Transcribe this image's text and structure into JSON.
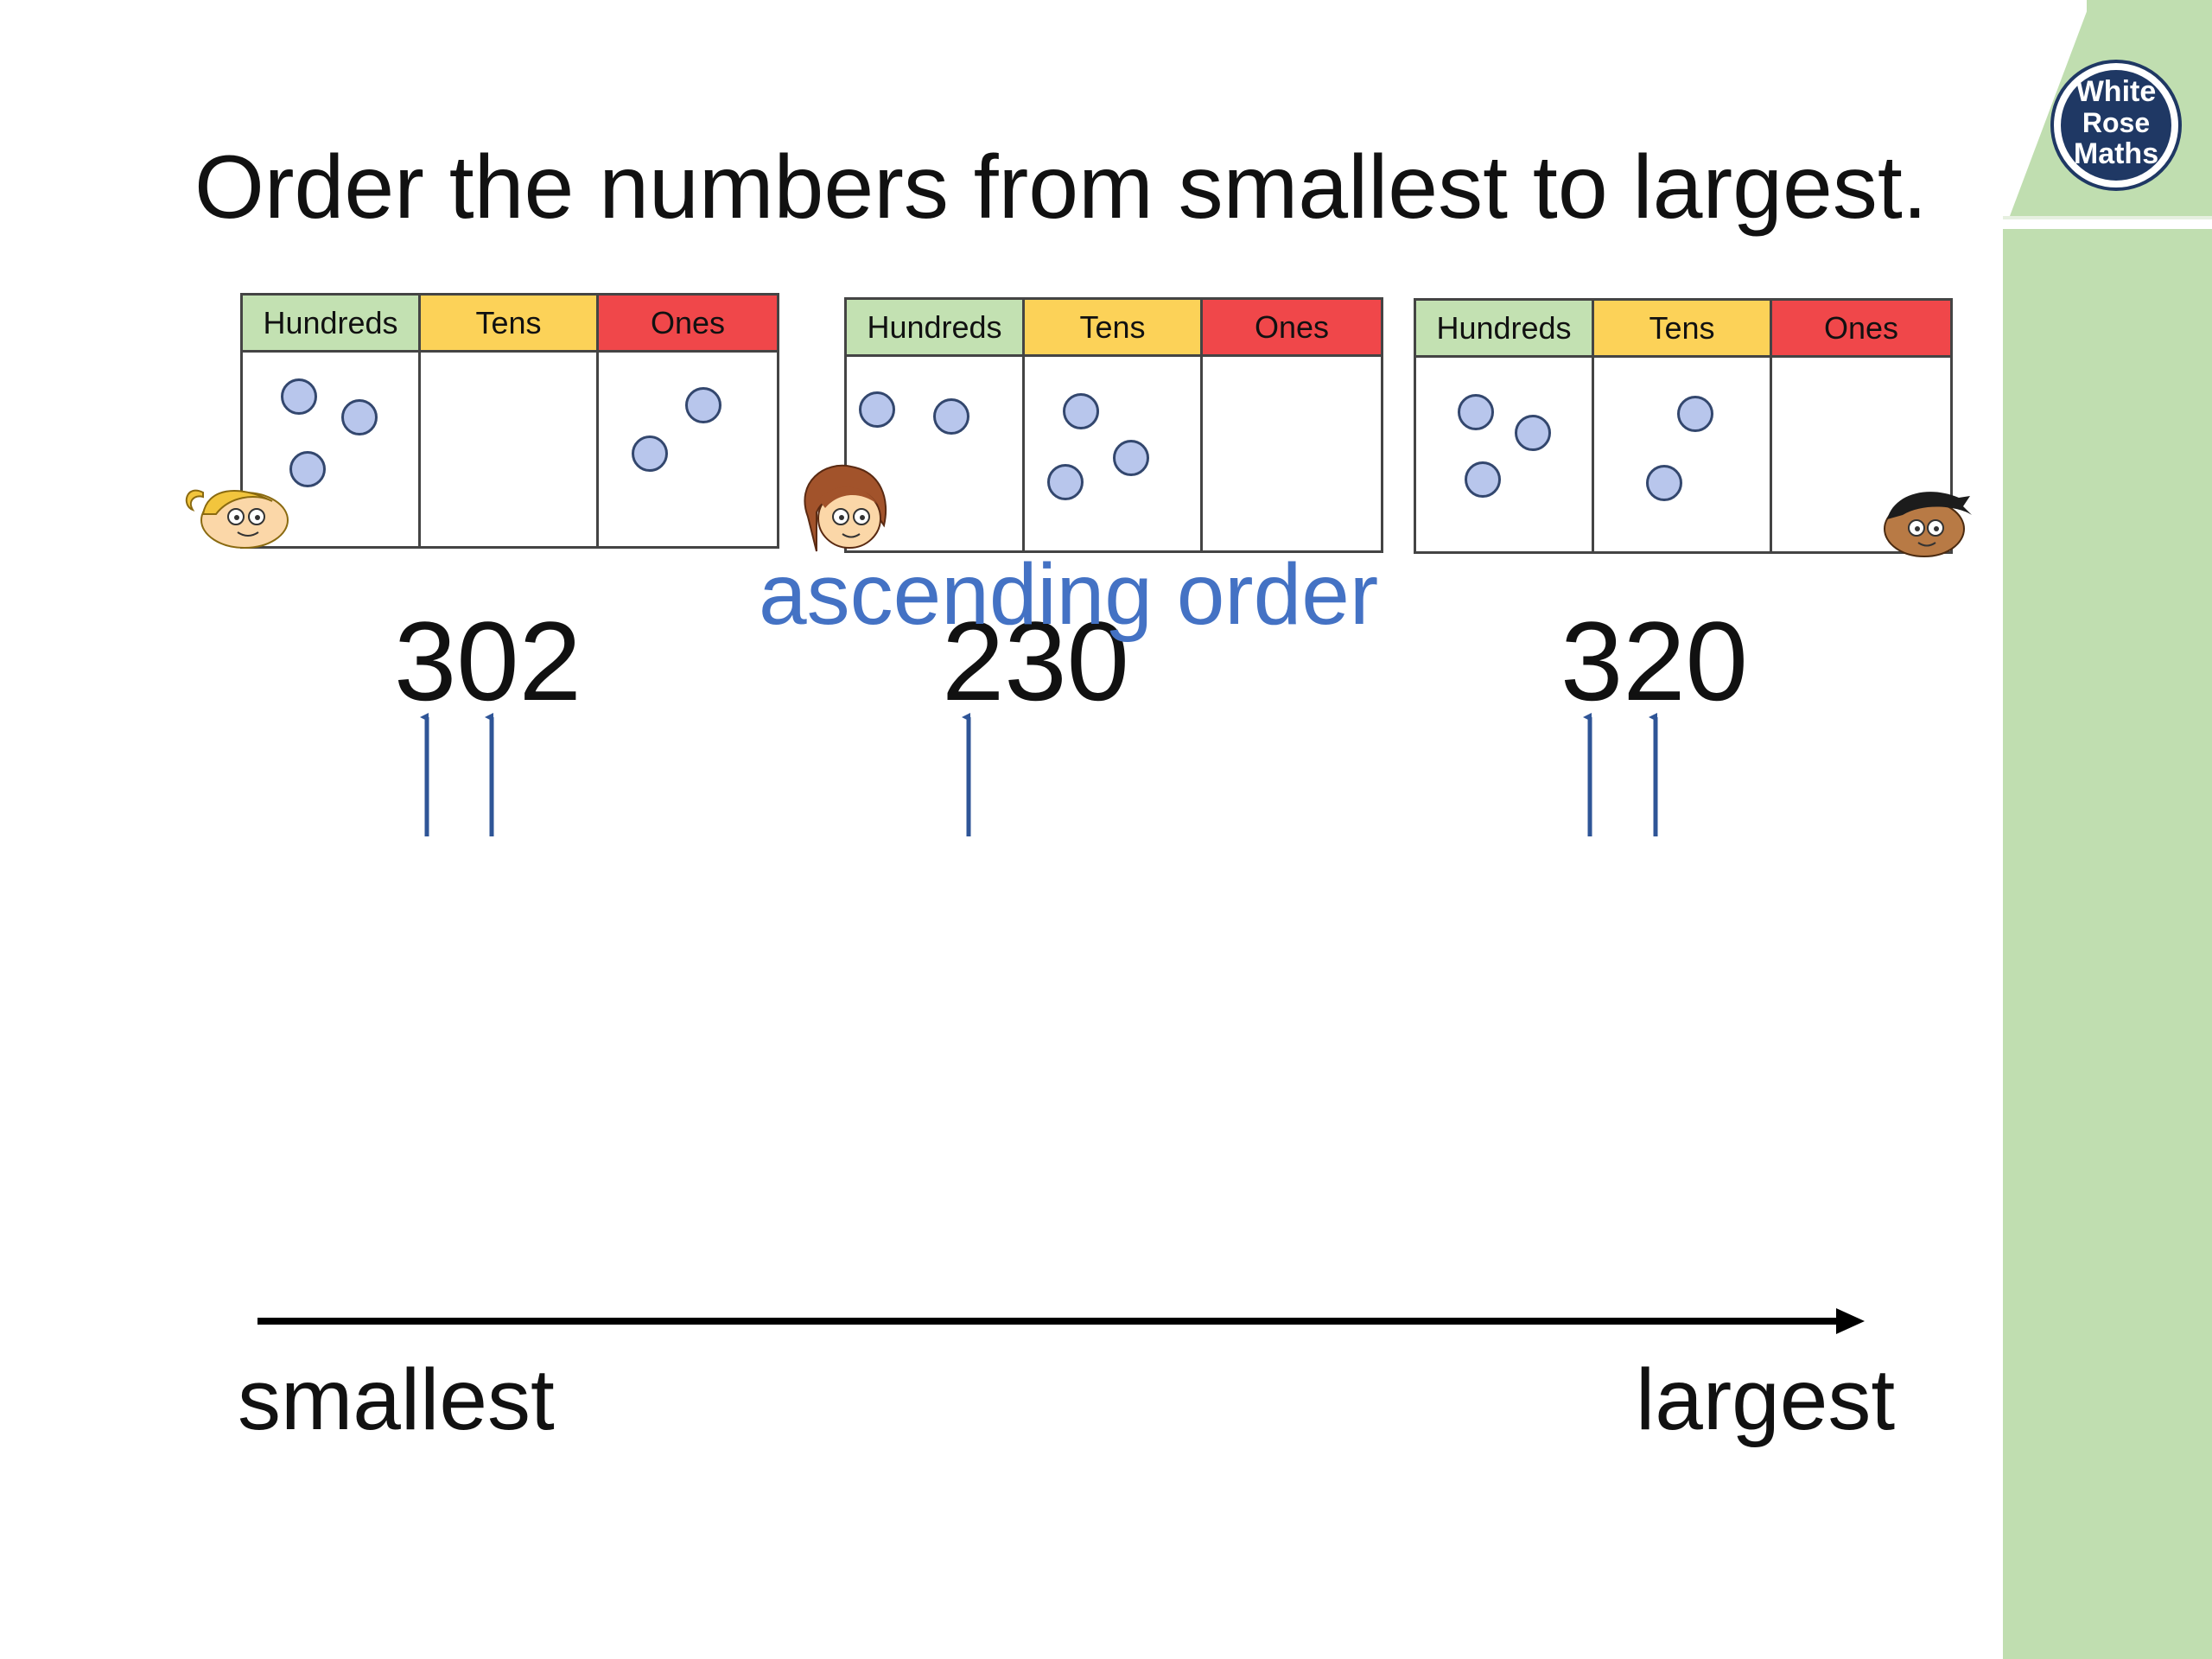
{
  "title": "Order the numbers from smallest to largest.",
  "logo": {
    "lines": [
      "White",
      "Rose",
      "Maths"
    ],
    "color": "#1f3864"
  },
  "columns": [
    "Hundreds",
    "Tens",
    "Ones"
  ],
  "charts": [
    {
      "hundreds": 3,
      "tens": 0,
      "ones": 2,
      "number": "302"
    },
    {
      "hundreds": 2,
      "tens": 3,
      "ones": 0,
      "number": "230"
    },
    {
      "hundreds": 3,
      "tens": 2,
      "ones": 0,
      "number": "320"
    }
  ],
  "annotation": "ascending order",
  "axis": {
    "left_label": "smallest",
    "right_label": "largest"
  },
  "colors": {
    "hundreds": "#c3e1b2",
    "tens": "#fcd258",
    "ones": "#f0474a",
    "annotation": "#4472c4",
    "sidebar": "#c0deb0"
  }
}
